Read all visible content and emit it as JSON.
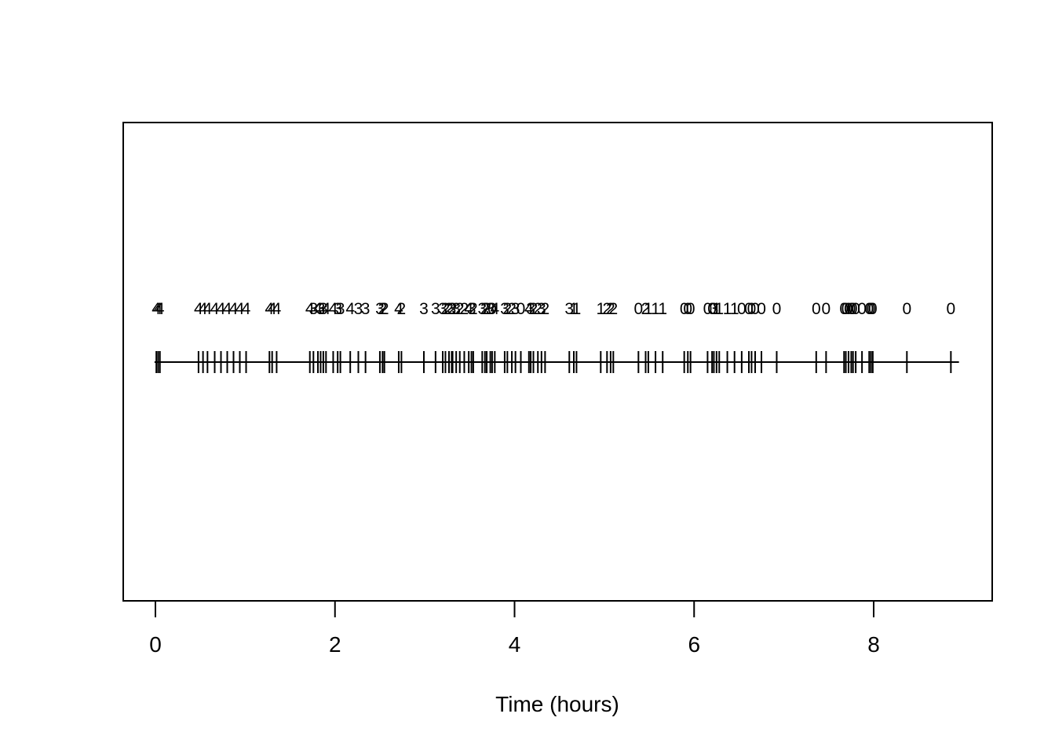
{
  "figure": {
    "background": "#ffffff",
    "ink_color": "#000000",
    "xlabel": "Time (hours)"
  },
  "chart_data": {
    "type": "scatter",
    "subtype": "event-timeline-with-count-labels",
    "title": "",
    "xlabel": "Time (hours)",
    "ylabel": "",
    "x_axis_ticks": [
      0,
      2,
      4,
      6,
      8
    ],
    "xlim": [
      0,
      9
    ],
    "grid": false,
    "legend": "none",
    "timeline_start": -0.01,
    "timeline_end": 8.95,
    "event_times_hours": [
      0.01,
      0.03,
      0.05,
      0.48,
      0.53,
      0.58,
      0.66,
      0.73,
      0.8,
      0.87,
      0.94,
      1.01,
      1.27,
      1.3,
      1.35,
      1.72,
      1.76,
      1.81,
      1.84,
      1.87,
      1.9,
      1.98,
      2.03,
      2.06,
      2.17,
      2.26,
      2.34,
      2.5,
      2.53,
      2.55,
      2.71,
      2.74,
      2.99,
      3.12,
      3.2,
      3.23,
      3.27,
      3.3,
      3.31,
      3.35,
      3.39,
      3.44,
      3.49,
      3.52,
      3.54,
      3.64,
      3.67,
      3.69,
      3.73,
      3.75,
      3.78,
      3.89,
      3.92,
      3.97,
      4.01,
      4.07,
      4.16,
      4.18,
      4.21,
      4.26,
      4.3,
      4.34,
      4.61,
      4.66,
      4.69,
      4.96,
      5.03,
      5.07,
      5.1,
      5.38,
      5.46,
      5.49,
      5.57,
      5.65,
      5.89,
      5.93,
      5.96,
      6.15,
      6.2,
      6.22,
      6.25,
      6.28,
      6.37,
      6.45,
      6.53,
      6.61,
      6.64,
      6.68,
      6.75,
      6.92,
      7.36,
      7.47,
      7.67,
      7.69,
      7.72,
      7.75,
      7.77,
      7.8,
      7.87,
      7.95,
      7.97,
      7.99,
      8.37,
      8.86
    ],
    "event_count_labels": [
      "4",
      "4",
      "4",
      "4",
      "4",
      "4",
      "4",
      "4",
      "4",
      "4",
      "4",
      "4",
      "4",
      "4",
      "4",
      "4",
      "3",
      "4",
      "3",
      "3",
      "4",
      "4",
      "3",
      "3",
      "4",
      "3",
      "3",
      "3",
      "2",
      "2",
      "4",
      "2",
      "3",
      "3",
      "3",
      "2",
      "2",
      "3",
      "2",
      "3",
      "2",
      "2",
      "4",
      "3",
      "2",
      "3",
      "2",
      "2",
      "3",
      "0",
      "4",
      "3",
      "2",
      "2",
      "3",
      "0",
      "4",
      "3",
      "2",
      "2",
      "3",
      "2",
      "3",
      "1",
      "1",
      "1",
      "2",
      "2",
      "2",
      "0",
      "2",
      "1",
      "1",
      "1",
      "0",
      "0",
      "0",
      "0",
      "0",
      "3",
      "1",
      "1",
      "1",
      "1",
      "0",
      "0",
      "0",
      "0",
      "0",
      "0",
      "0",
      "0",
      "0",
      "0",
      "0",
      "0",
      "0",
      "0",
      "0",
      "0",
      "0",
      "0",
      "0",
      "0"
    ]
  }
}
